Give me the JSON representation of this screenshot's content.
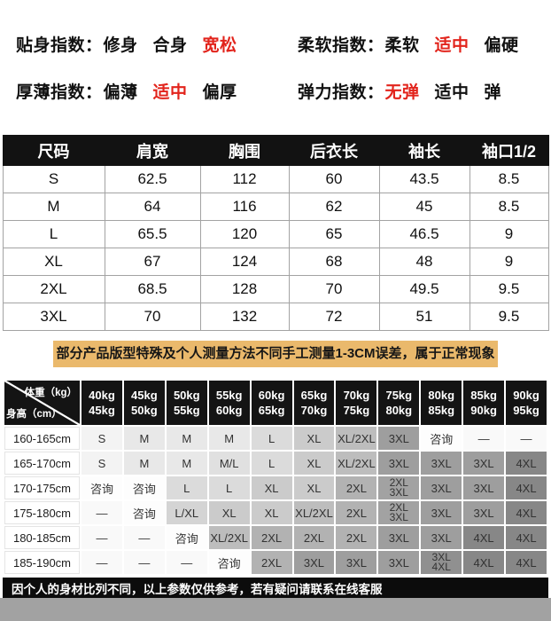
{
  "colors": {
    "accent_red": "#e2241c",
    "table_header_bg": "#121212",
    "note_bar_bg": "#eab96c",
    "footer_bg": "#0c0c0c",
    "bottom_strip": "#a2a2a2"
  },
  "fit_indices": [
    {
      "label": "贴身指数：",
      "options": [
        {
          "text": "修身",
          "highlight": false
        },
        {
          "text": "合身",
          "highlight": false
        },
        {
          "text": "宽松",
          "highlight": true
        }
      ]
    },
    {
      "label": "柔软指数：",
      "options": [
        {
          "text": "柔软",
          "highlight": false
        },
        {
          "text": "适中",
          "highlight": true
        },
        {
          "text": "偏硬",
          "highlight": false
        }
      ]
    },
    {
      "label": "厚薄指数：",
      "options": [
        {
          "text": "偏薄",
          "highlight": false
        },
        {
          "text": "适中",
          "highlight": true
        },
        {
          "text": "偏厚",
          "highlight": false
        }
      ]
    },
    {
      "label": "弹力指数：",
      "options": [
        {
          "text": "无弹",
          "highlight": true
        },
        {
          "text": "适中",
          "highlight": false
        },
        {
          "text": "弹",
          "highlight": false
        }
      ]
    }
  ],
  "size_table": {
    "headers": [
      "尺码",
      "肩宽",
      "胸围",
      "后衣长",
      "袖长",
      "袖口1/2"
    ],
    "rows": [
      [
        "S",
        "62.5",
        "112",
        "60",
        "43.5",
        "8.5"
      ],
      [
        "M",
        "64",
        "116",
        "62",
        "45",
        "8.5"
      ],
      [
        "L",
        "65.5",
        "120",
        "65",
        "46.5",
        "9"
      ],
      [
        "XL",
        "67",
        "124",
        "68",
        "48",
        "9"
      ],
      [
        "2XL",
        "68.5",
        "128",
        "70",
        "49.5",
        "9.5"
      ],
      [
        "3XL",
        "70",
        "132",
        "72",
        "51",
        "9.5"
      ]
    ]
  },
  "note_bar": "部分产品版型特殊及个人测量方法不同手工测量1-3CM误差，属于正常现象",
  "matrix": {
    "corner_top": "体重（kg）",
    "corner_bottom": "身高（cm）",
    "weight_headers": [
      [
        "40kg",
        "45kg"
      ],
      [
        "45kg",
        "50kg"
      ],
      [
        "50kg",
        "55kg"
      ],
      [
        "55kg",
        "60kg"
      ],
      [
        "60kg",
        "65kg"
      ],
      [
        "65kg",
        "70kg"
      ],
      [
        "70kg",
        "75kg"
      ],
      [
        "75kg",
        "80kg"
      ],
      [
        "80kg",
        "85kg"
      ],
      [
        "85kg",
        "90kg"
      ],
      [
        "90kg",
        "95kg"
      ]
    ],
    "height_rows": [
      {
        "label": "160-165cm",
        "cells": [
          "S",
          "M",
          "M",
          "M",
          "L",
          "XL",
          "XL/2XL",
          "3XL",
          "咨询",
          "—",
          "—"
        ]
      },
      {
        "label": "165-170cm",
        "cells": [
          "S",
          "M",
          "M",
          "M/L",
          "L",
          "XL",
          "XL/2XL",
          "3XL",
          "3XL",
          "3XL",
          "4XL"
        ]
      },
      {
        "label": "170-175cm",
        "cells": [
          "咨询",
          "咨询",
          "L",
          "L",
          "XL",
          "XL",
          "2XL",
          "2XL|3XL",
          "3XL",
          "3XL",
          "4XL"
        ]
      },
      {
        "label": "175-180cm",
        "cells": [
          "—",
          "咨询",
          "L/XL",
          "XL",
          "XL",
          "XL/2XL",
          "2XL",
          "2XL|3XL",
          "3XL",
          "3XL",
          "4XL"
        ]
      },
      {
        "label": "180-185cm",
        "cells": [
          "—",
          "—",
          "咨询",
          "XL/2XL",
          "2XL",
          "2XL",
          "2XL",
          "3XL",
          "3XL",
          "4XL",
          "4XL"
        ]
      },
      {
        "label": "185-190cm",
        "cells": [
          "—",
          "—",
          "—",
          "咨询",
          "2XL",
          "3XL",
          "3XL",
          "3XL",
          "3XL|4XL",
          "4XL",
          "4XL"
        ]
      }
    ],
    "shades": {
      "S": "#f3f3f3",
      "M": "#e8e8e8",
      "M/L": "#e0e0e0",
      "L": "#dbdbdb",
      "L/XL": "#d4d4d4",
      "XL": "#cbcbcb",
      "XL/2XL": "#bdbdbd",
      "2XL": "#b2b2b2",
      "2XL|3XL": "#a2a2a2",
      "3XL": "#9e9e9e",
      "3XL|4XL": "#909090",
      "4XL": "#878787",
      "咨询": "#fdfdfd",
      "—": "#f9f9f9"
    }
  },
  "footer_note": "因个人的身材比列不同，以上参数仅供参考，若有疑问请联系在线客服"
}
